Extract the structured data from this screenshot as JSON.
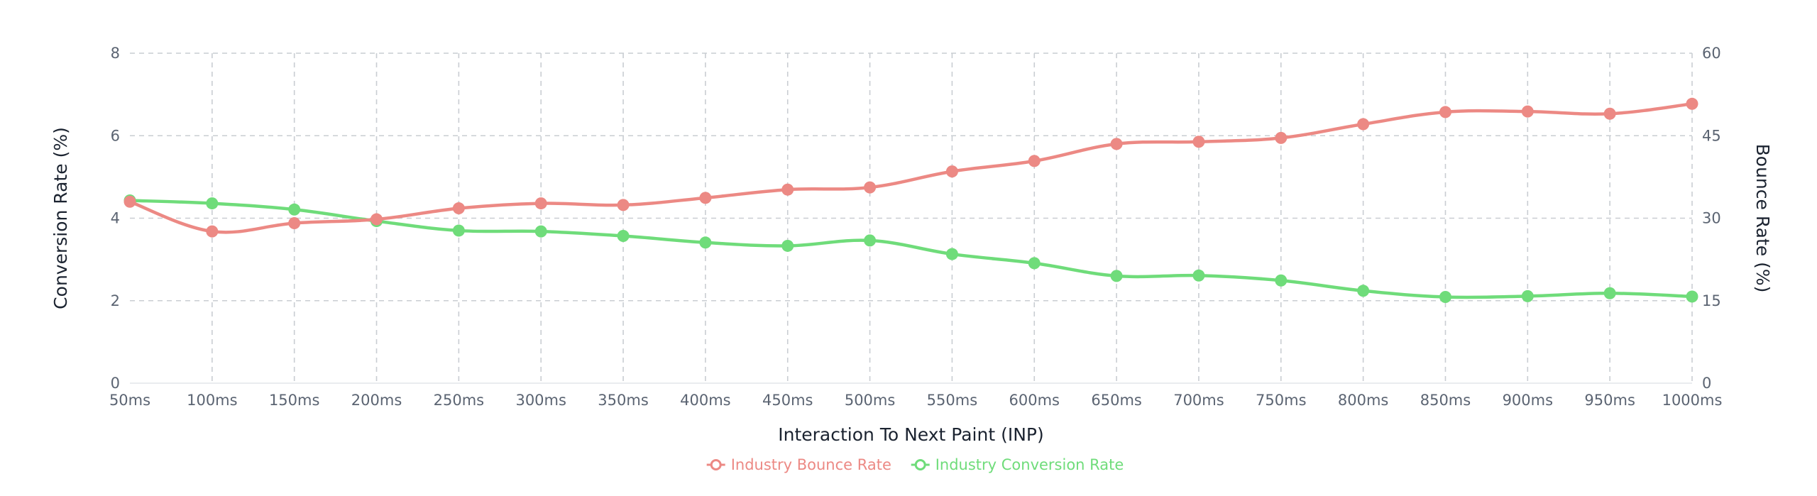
{
  "chart_data": {
    "type": "line",
    "title": "",
    "xlabel": "Interaction To Next Paint (INP)",
    "ylabel_left": "Conversion Rate (%)",
    "ylabel_right": "Bounce Rate (%)",
    "x": [
      "50ms",
      "100ms",
      "150ms",
      "200ms",
      "250ms",
      "300ms",
      "350ms",
      "400ms",
      "450ms",
      "500ms",
      "550ms",
      "600ms",
      "650ms",
      "700ms",
      "750ms",
      "800ms",
      "850ms",
      "900ms",
      "950ms",
      "1000ms"
    ],
    "ylim_left": [
      0,
      8
    ],
    "yticks_left": [
      0,
      2,
      4,
      6,
      8
    ],
    "ylim_right": [
      0,
      60
    ],
    "yticks_right": [
      0,
      15,
      30,
      45,
      60
    ],
    "grid": true,
    "legend_position": "bottom-center",
    "series": [
      {
        "name": "Industry Bounce Rate",
        "axis": "right",
        "color": "#ec8984",
        "values": [
          33.0,
          27.6,
          29.1,
          29.8,
          31.8,
          32.7,
          32.4,
          33.7,
          35.2,
          35.6,
          38.5,
          40.4,
          43.5,
          43.9,
          44.6,
          47.1,
          49.3,
          49.4,
          49.0,
          50.8
        ]
      },
      {
        "name": "Industry Conversion Rate",
        "axis": "left",
        "color": "#6fdc7a",
        "values": [
          4.43,
          4.36,
          4.21,
          3.93,
          3.7,
          3.68,
          3.57,
          3.41,
          3.33,
          3.46,
          3.13,
          2.91,
          2.6,
          2.61,
          2.49,
          2.24,
          2.09,
          2.11,
          2.18,
          2.1
        ]
      }
    ]
  }
}
